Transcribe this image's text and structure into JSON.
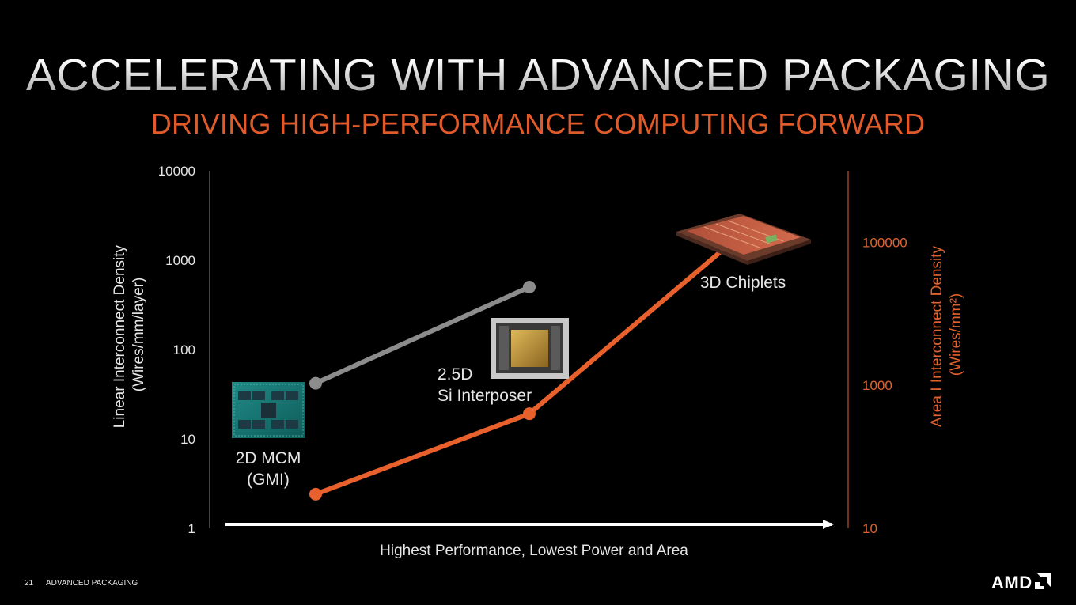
{
  "slide": {
    "title": "ACCELERATING WITH ADVANCED PACKAGING",
    "subtitle": "DRIVING HIGH-PERFORMANCE COMPUTING FORWARD",
    "page_number": "21",
    "footer_label": "ADVANCED PACKAGING",
    "logo_text": "AMD"
  },
  "colors": {
    "background": "#000000",
    "subtitle": "#e05a2a",
    "linear_series": "#8c8c8c",
    "area_series": "#e8602c",
    "right_axis": "#e0622e",
    "text": "#e6e6e6"
  },
  "chart_data": {
    "type": "line",
    "categories": [
      "2D MCM (GMI)",
      "2.5D Si Interposer",
      "3D Chiplets"
    ],
    "category_labels": [
      [
        "2D MCM",
        "(GMI)"
      ],
      [
        "2.5D",
        "Si Interposer"
      ],
      [
        "3D Chiplets"
      ]
    ],
    "xlabel": "Highest Performance, Lowest Power and Area",
    "left_axis": {
      "label_lines": [
        "Linear Interconnect Density",
        "(Wires/mm/layer)"
      ],
      "scale": "log",
      "ylim": [
        1,
        10000
      ],
      "ticks": [
        1,
        10,
        100,
        1000,
        10000
      ]
    },
    "right_axis": {
      "label_lines": [
        "Area I Interconnect Density",
        "(Wires/mm²)"
      ],
      "scale": "log",
      "ylim": [
        10,
        1000000
      ],
      "ticks": [
        10,
        1000,
        100000
      ]
    },
    "series": [
      {
        "axis": "left",
        "values": [
          42,
          500,
          null
        ]
      },
      {
        "axis": "right",
        "values": [
          30,
          400,
          130000
        ]
      }
    ],
    "grid": false,
    "legend": "none",
    "icons": [
      "2d-mcm-chip-icon",
      "interposer-chip-icon",
      "3d-chiplet-stack-icon"
    ]
  }
}
